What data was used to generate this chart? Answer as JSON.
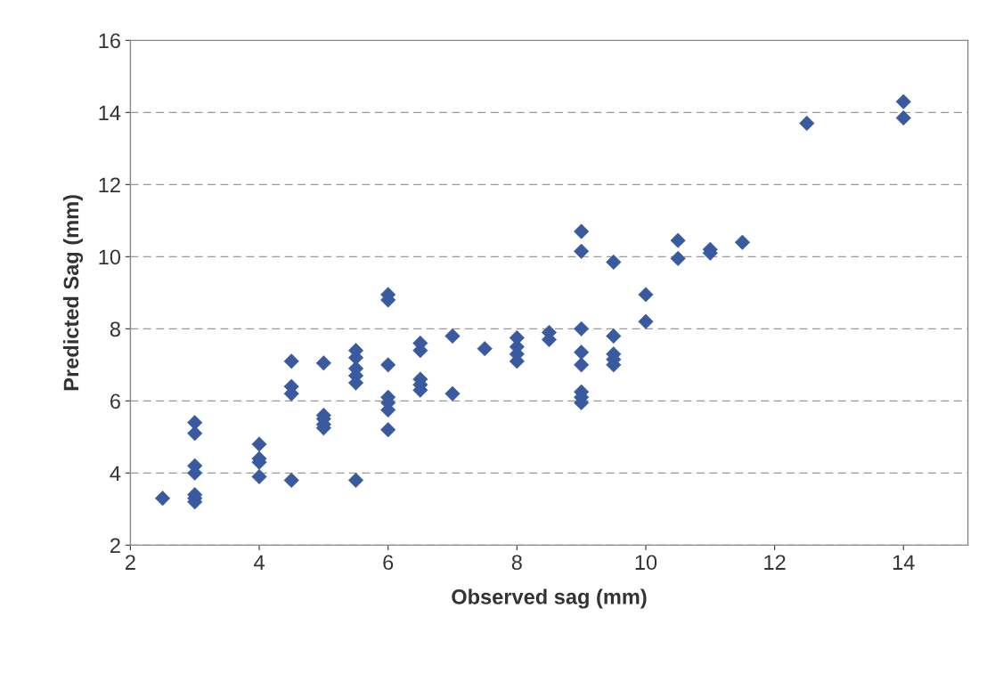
{
  "chart_data": {
    "type": "scatter",
    "xlabel": "Observed sag (mm)",
    "ylabel": "Predicted Sag (mm)",
    "x": [
      2.5,
      3,
      3,
      3,
      3,
      3,
      3,
      3,
      4,
      4,
      4,
      4,
      4.5,
      4.5,
      4.5,
      4.5,
      5,
      5,
      5,
      5,
      5,
      5.5,
      5.5,
      5.5,
      5.5,
      5.5,
      5.5,
      6,
      6,
      6,
      6,
      6,
      6,
      6,
      6.5,
      6.5,
      6.5,
      6.5,
      6.5,
      7,
      7,
      7.5,
      8,
      8,
      8,
      8,
      8.5,
      8.5,
      9,
      9,
      9,
      9,
      9,
      9,
      9,
      9,
      9.5,
      9.5,
      9.5,
      9.5,
      9.5,
      10,
      10,
      10.5,
      10.5,
      11,
      11,
      11.5,
      12.5,
      14,
      14
    ],
    "values": [
      3.3,
      5.4,
      5.1,
      4.2,
      4.0,
      3.4,
      3.3,
      3.2,
      4.8,
      4.4,
      4.3,
      3.9,
      7.1,
      6.4,
      6.2,
      3.8,
      7.05,
      5.6,
      5.5,
      5.35,
      5.25,
      7.4,
      7.2,
      6.9,
      6.7,
      6.5,
      3.8,
      8.95,
      8.8,
      7.0,
      6.1,
      5.95,
      5.75,
      5.2,
      7.6,
      7.4,
      6.6,
      6.45,
      6.3,
      7.8,
      6.2,
      7.45,
      7.75,
      7.5,
      7.3,
      7.1,
      7.9,
      7.7,
      10.7,
      10.15,
      8.0,
      7.35,
      7.0,
      6.25,
      6.1,
      5.95,
      9.85,
      7.8,
      7.3,
      7.15,
      7.0,
      8.95,
      8.2,
      10.45,
      9.95,
      10.2,
      10.1,
      10.4,
      13.7,
      14.3,
      13.85
    ],
    "color": "#3a5a9f",
    "marker": "diamond",
    "xlim": [
      2,
      15
    ],
    "xticks": [
      2,
      4,
      6,
      8,
      10,
      12,
      14
    ],
    "ylim": [
      2,
      16
    ],
    "yticks": [
      2,
      4,
      6,
      8,
      10,
      12,
      14,
      16
    ],
    "grid": "y",
    "line_style": "dashed"
  }
}
